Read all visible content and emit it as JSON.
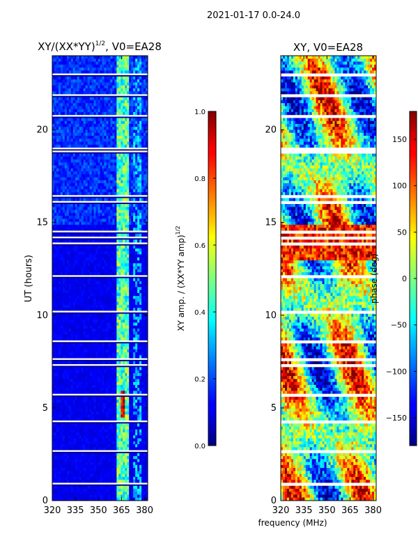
{
  "suptitle": "2021-01-17 0.0-24.0",
  "xlabel": "frequency (MHz)",
  "chart_data": [
    {
      "type": "heatmap",
      "title": "XY/(XX*YY)",
      "title_sup": "1/2",
      "title_suffix": ", V0=EA28",
      "ylabel": "UT (hours)",
      "xlim": [
        320,
        382
      ],
      "ylim": [
        0,
        24
      ],
      "xticks": [
        320,
        335,
        350,
        365,
        380
      ],
      "yticks": [
        0,
        5,
        10,
        15,
        20
      ],
      "colormap": "jet",
      "colorbar": {
        "label": "XY amp. / (XX*YY amp)",
        "label_sup": "1/2",
        "min": 0.0,
        "max": 1.0,
        "ticks": [
          0.0,
          0.2,
          0.4,
          0.6,
          0.8,
          1.0
        ],
        "tick_labels": [
          "0.0",
          "0.2",
          "0.4",
          "0.6",
          "0.8",
          "1.0"
        ]
      }
    },
    {
      "type": "heatmap",
      "title": "XY, V0=EA28",
      "xlim": [
        320,
        382
      ],
      "ylim": [
        0,
        24
      ],
      "xticks": [
        320,
        335,
        350,
        365,
        380
      ],
      "yticks": [
        0,
        5,
        10,
        15,
        20
      ],
      "colormap": "jet",
      "colorbar": {
        "label": "phase (deg)",
        "min": -180,
        "max": 180,
        "ticks": [
          150,
          100,
          50,
          0,
          -50,
          -100,
          -150
        ],
        "tick_labels": [
          "150",
          "100",
          "50",
          "0",
          "−50",
          "−100",
          "−150"
        ]
      }
    }
  ]
}
